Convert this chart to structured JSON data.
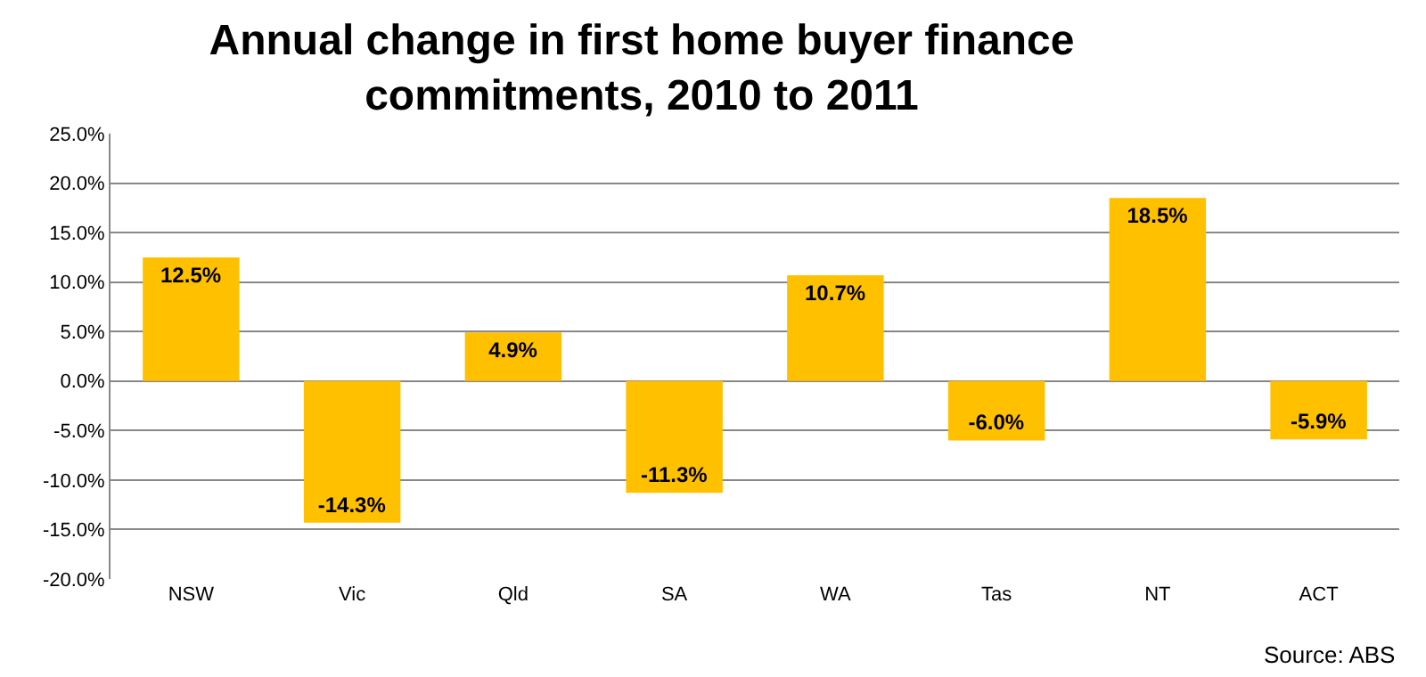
{
  "chart_data": {
    "type": "bar",
    "title": "Annual change in first home buyer finance commitments, 2010 to 2011",
    "categories": [
      "NSW",
      "Vic",
      "Qld",
      "SA",
      "WA",
      "Tas",
      "NT",
      "ACT"
    ],
    "values": [
      12.5,
      -14.3,
      4.9,
      -11.3,
      10.7,
      -6.0,
      18.5,
      -5.9
    ],
    "value_labels": [
      "12.5%",
      "-14.3%",
      "4.9%",
      "-11.3%",
      "10.7%",
      "-6.0%",
      "18.5%",
      "-5.9%"
    ],
    "color": "#ffc000",
    "ylim": [
      -20,
      25
    ],
    "yticks": [
      {
        "value": -20,
        "label": "-20.0%"
      },
      {
        "value": -15,
        "label": "-15.0%"
      },
      {
        "value": -10,
        "label": "-10.0%"
      },
      {
        "value": -5,
        "label": "-5.0%"
      },
      {
        "value": 0,
        "label": "0.0%"
      },
      {
        "value": 5,
        "label": "5.0%"
      },
      {
        "value": 10,
        "label": "10.0%"
      },
      {
        "value": 15,
        "label": "15.0%"
      },
      {
        "value": 20,
        "label": "20.0%"
      },
      {
        "value": 25,
        "label": "25.0%"
      }
    ],
    "grid": "y",
    "annotations": [
      "Source: ABS"
    ]
  }
}
